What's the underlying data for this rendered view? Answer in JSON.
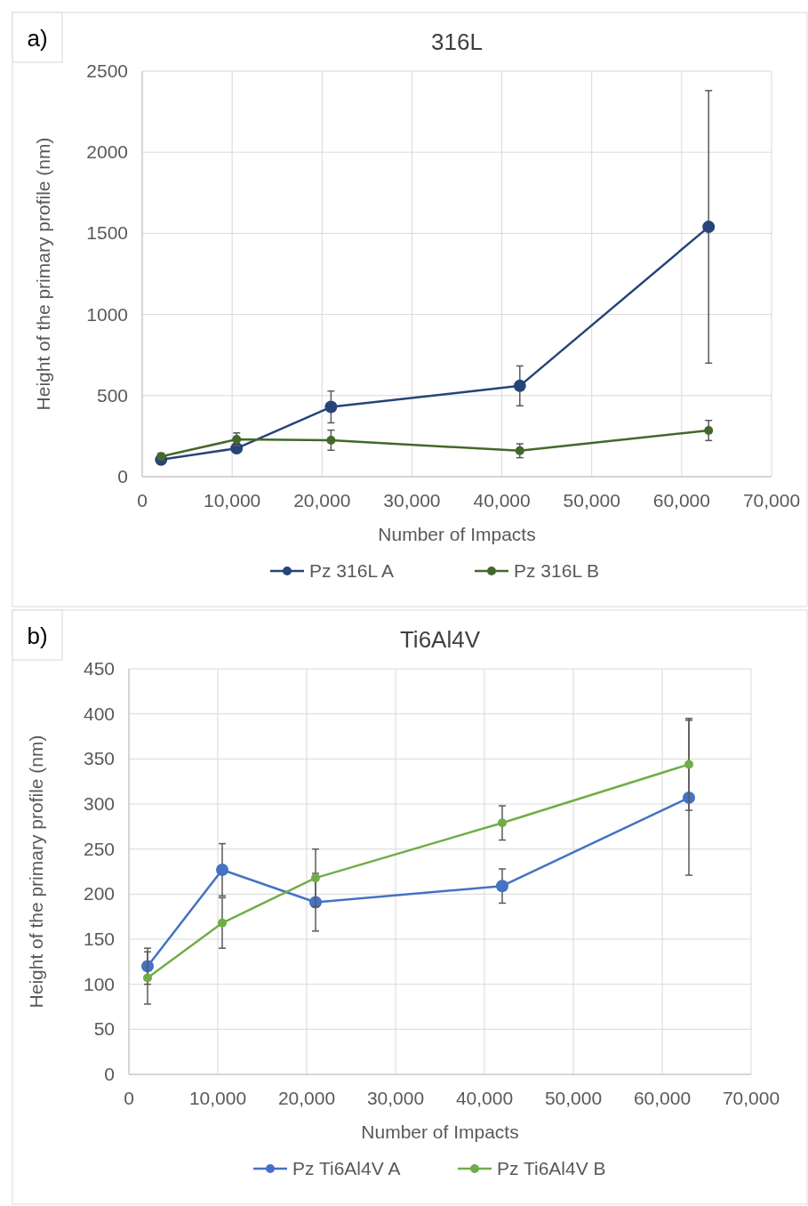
{
  "chart_data": [
    {
      "type": "line",
      "title": "316L",
      "xlabel": "Number of Impacts",
      "ylabel": "Height of the primary profile (nm)",
      "annotations": [
        "a)"
      ],
      "x": [
        2100,
        10500,
        21000,
        42000,
        63000
      ],
      "xlim": [
        0,
        70000
      ],
      "xticks": [
        0,
        {
          "value": 10000,
          "label": "10,000"
        },
        {
          "value": 20000,
          "label": "20,000"
        },
        {
          "value": 30000,
          "label": "30,000"
        },
        {
          "value": 40000,
          "label": "40,000"
        },
        {
          "value": 50000,
          "label": "50,000"
        },
        {
          "value": 60000,
          "label": "60,000"
        },
        {
          "value": 70000,
          "label": "70,000"
        }
      ],
      "ylim": [
        0,
        2500
      ],
      "yticks": [
        0,
        500,
        1000,
        1500,
        2000,
        2500
      ],
      "grid": true,
      "legend": "bottom",
      "marker": "circle",
      "line_style": "solid",
      "series": [
        {
          "name": "Pz 316L A",
          "color": "#264478",
          "values": [
            105,
            175,
            430,
            560,
            1540
          ],
          "errors": [
            15,
            22,
            98,
            123,
            840
          ]
        },
        {
          "name": "Pz 316L B",
          "color": "#43682b",
          "values": [
            125,
            230,
            225,
            160,
            285
          ],
          "errors": [
            20,
            40,
            62,
            43,
            62
          ]
        }
      ]
    },
    {
      "type": "line",
      "title": "Ti6Al4V",
      "xlabel": "Number of Impacts",
      "ylabel": "Height of the primary profile (nm)",
      "annotations": [
        "b)"
      ],
      "x": [
        2100,
        10500,
        21000,
        42000,
        63000
      ],
      "xlim": [
        0,
        70000
      ],
      "xticks": [
        0,
        {
          "value": 10000,
          "label": "10,000"
        },
        {
          "value": 20000,
          "label": "20,000"
        },
        {
          "value": 30000,
          "label": "30,000"
        },
        {
          "value": 40000,
          "label": "40,000"
        },
        {
          "value": 50000,
          "label": "50,000"
        },
        {
          "value": 60000,
          "label": "60,000"
        },
        {
          "value": 70000,
          "label": "70,000"
        }
      ],
      "ylim": [
        0,
        450
      ],
      "yticks": [
        0,
        50,
        100,
        150,
        200,
        250,
        300,
        350,
        400,
        450
      ],
      "grid": true,
      "legend": "bottom",
      "marker": "circle",
      "line_style": "solid",
      "series": [
        {
          "name": "Pz Ti6Al4V A",
          "color": "#4472c4",
          "values": [
            120,
            227,
            191,
            209,
            307
          ],
          "errors": [
            20,
            29,
            32,
            19,
            86
          ]
        },
        {
          "name": "Pz Ti6Al4V B",
          "color": "#70ad47",
          "values": [
            107,
            168,
            218,
            279,
            344
          ],
          "errors": [
            29,
            28,
            32,
            19,
            51
          ]
        }
      ]
    }
  ]
}
